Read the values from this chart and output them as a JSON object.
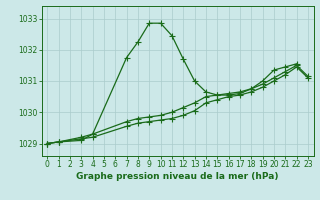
{
  "title": "Graphe pression niveau de la mer (hPa)",
  "background_color": "#cce8e8",
  "grid_color": "#aacccc",
  "line_color": "#1a6b1a",
  "xlim": [
    -0.5,
    23.5
  ],
  "ylim": [
    1028.6,
    1033.4
  ],
  "yticks": [
    1029,
    1030,
    1031,
    1032,
    1033
  ],
  "xticks": [
    0,
    1,
    2,
    3,
    4,
    5,
    6,
    7,
    8,
    9,
    10,
    11,
    12,
    13,
    14,
    15,
    16,
    17,
    18,
    19,
    20,
    21,
    22,
    23
  ],
  "series1_x": [
    0,
    1,
    3,
    4,
    7,
    8,
    9,
    10,
    11,
    12,
    13,
    14,
    15,
    16,
    17,
    18,
    19,
    20,
    21,
    22
  ],
  "series1_y": [
    1029.0,
    1029.05,
    1029.1,
    1029.3,
    1031.75,
    1032.25,
    1032.85,
    1032.85,
    1032.45,
    1031.7,
    1031.0,
    1030.65,
    1030.55,
    1030.55,
    1030.6,
    1030.75,
    1031.0,
    1031.35,
    1031.45,
    1031.55
  ],
  "series2_x": [
    0,
    1,
    3,
    4,
    7,
    8,
    9,
    10,
    11,
    12,
    13,
    14,
    15,
    16,
    17,
    18,
    19,
    20,
    21,
    22,
    23
  ],
  "series2_y": [
    1029.0,
    1029.05,
    1029.2,
    1029.3,
    1029.7,
    1029.8,
    1029.85,
    1029.9,
    1030.0,
    1030.15,
    1030.3,
    1030.5,
    1030.55,
    1030.6,
    1030.65,
    1030.75,
    1030.9,
    1031.1,
    1031.3,
    1031.5,
    1031.15
  ],
  "series3_x": [
    0,
    1,
    3,
    4,
    7,
    8,
    9,
    10,
    11,
    12,
    13,
    14,
    15,
    16,
    17,
    18,
    19,
    20,
    21,
    22,
    23
  ],
  "series3_y": [
    1029.0,
    1029.05,
    1029.15,
    1029.2,
    1029.55,
    1029.65,
    1029.7,
    1029.75,
    1029.8,
    1029.9,
    1030.05,
    1030.3,
    1030.4,
    1030.5,
    1030.55,
    1030.65,
    1030.8,
    1031.0,
    1031.2,
    1031.45,
    1031.1
  ],
  "marker": "+",
  "marker_size": 4,
  "linewidth": 0.9,
  "tick_fontsize": 5.5,
  "xlabel_fontsize": 6.5
}
